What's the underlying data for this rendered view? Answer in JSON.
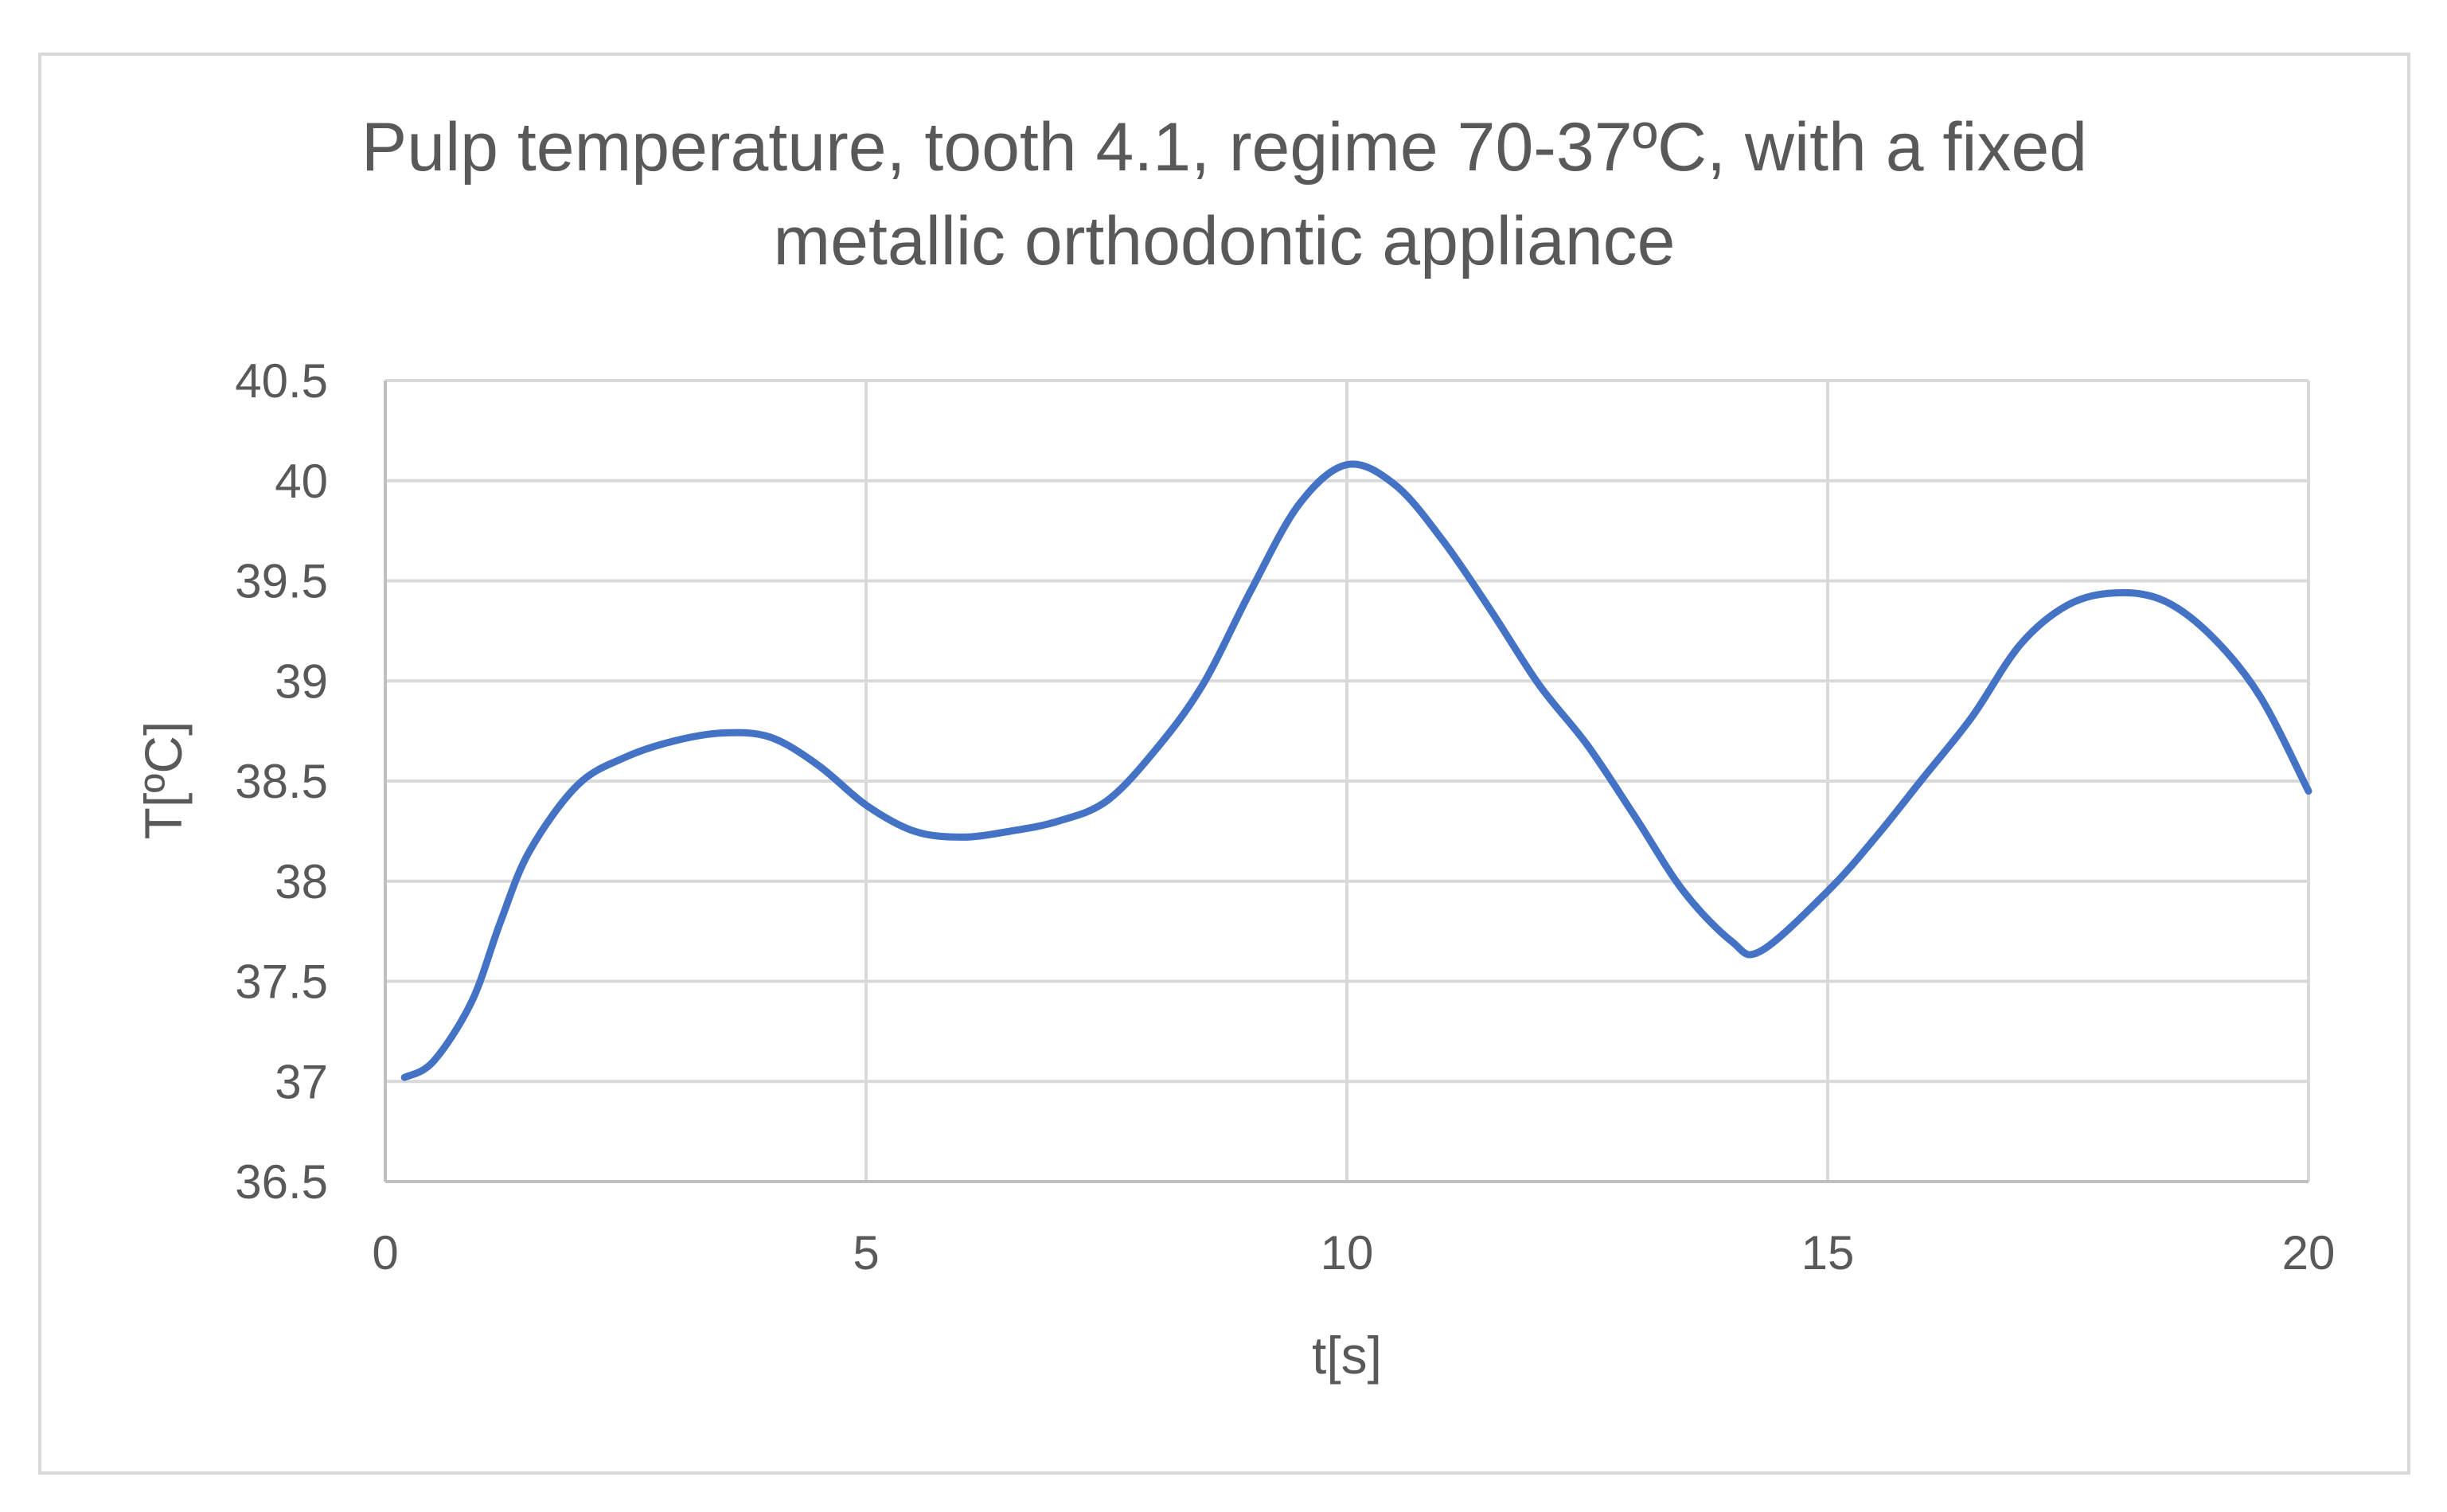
{
  "chart_data": {
    "type": "line",
    "title": "Pulp temperature, tooth 4.1, regime 70-37ºC, with a fixed metallic orthodontic appliance",
    "title_lines": [
      "Pulp temperature, tooth 4.1, regime 70-37ºC, with a fixed",
      "metallic orthodontic appliance"
    ],
    "xlabel": "t[s]",
    "ylabel": "T[ºC]",
    "xlim": [
      0,
      20
    ],
    "ylim": [
      36.5,
      40.5
    ],
    "xticks": [
      0,
      5,
      10,
      15,
      20
    ],
    "yticks": [
      36.5,
      37,
      37.5,
      38,
      38.5,
      39,
      39.5,
      40,
      40.5
    ],
    "xtick_labels": [
      "0",
      "5",
      "10",
      "15",
      "20"
    ],
    "ytick_labels": [
      "36.5",
      "37",
      "37.5",
      "38",
      "38.5",
      "39",
      "39.5",
      "40",
      "40.5"
    ],
    "grid": true,
    "legend": "none",
    "series": [
      {
        "color": "#4472c4",
        "x": [
          0.2,
          0.5,
          0.9,
          1.2,
          1.5,
          2.0,
          2.5,
          3.0,
          3.5,
          4.0,
          4.5,
          5.0,
          5.5,
          6.0,
          6.5,
          7.0,
          7.5,
          8.0,
          8.5,
          9.0,
          9.5,
          10.0,
          10.5,
          11.0,
          11.5,
          12.0,
          12.5,
          13.0,
          13.5,
          14.0,
          14.3,
          15.0,
          15.5,
          16.0,
          16.5,
          17.0,
          17.5,
          18.0,
          18.5,
          19.0,
          19.5,
          20.0
        ],
        "y": [
          37.02,
          37.1,
          37.4,
          37.8,
          38.15,
          38.48,
          38.62,
          38.7,
          38.74,
          38.72,
          38.58,
          38.38,
          38.25,
          38.22,
          38.25,
          38.3,
          38.4,
          38.65,
          38.98,
          39.45,
          39.88,
          40.08,
          39.98,
          39.7,
          39.35,
          38.98,
          38.68,
          38.32,
          37.95,
          37.7,
          37.65,
          37.95,
          38.22,
          38.52,
          38.82,
          39.18,
          39.38,
          39.44,
          39.4,
          39.22,
          38.92,
          38.45
        ]
      }
    ]
  }
}
